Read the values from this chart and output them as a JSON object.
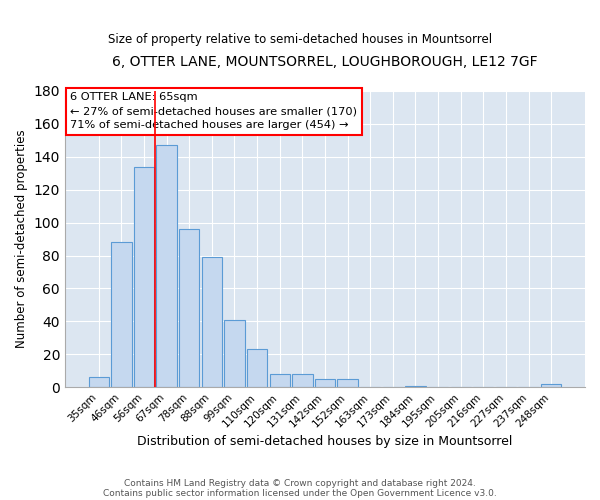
{
  "title": "6, OTTER LANE, MOUNTSORREL, LOUGHBOROUGH, LE12 7GF",
  "subtitle": "Size of property relative to semi-detached houses in Mountsorrel",
  "xlabel": "Distribution of semi-detached houses by size in Mountsorrel",
  "ylabel": "Number of semi-detached properties",
  "bar_labels": [
    "35sqm",
    "46sqm",
    "56sqm",
    "67sqm",
    "78sqm",
    "88sqm",
    "99sqm",
    "110sqm",
    "120sqm",
    "131sqm",
    "142sqm",
    "152sqm",
    "163sqm",
    "173sqm",
    "184sqm",
    "195sqm",
    "205sqm",
    "216sqm",
    "227sqm",
    "237sqm",
    "248sqm"
  ],
  "bar_values": [
    6,
    88,
    134,
    147,
    96,
    79,
    41,
    23,
    8,
    8,
    5,
    5,
    0,
    0,
    1,
    0,
    0,
    0,
    0,
    0,
    2
  ],
  "bar_color": "#c5d8ef",
  "bar_edge_color": "#5b9bd5",
  "ylim": [
    0,
    180
  ],
  "yticks": [
    0,
    20,
    40,
    60,
    80,
    100,
    120,
    140,
    160,
    180
  ],
  "red_line_x": 2.5,
  "annotation_title": "6 OTTER LANE: 65sqm",
  "annotation_line1": "← 27% of semi-detached houses are smaller (170)",
  "annotation_line2": "71% of semi-detached houses are larger (454) →",
  "bg_color": "#dce6f1",
  "footnote1": "Contains HM Land Registry data © Crown copyright and database right 2024.",
  "footnote2": "Contains public sector information licensed under the Open Government Licence v3.0."
}
